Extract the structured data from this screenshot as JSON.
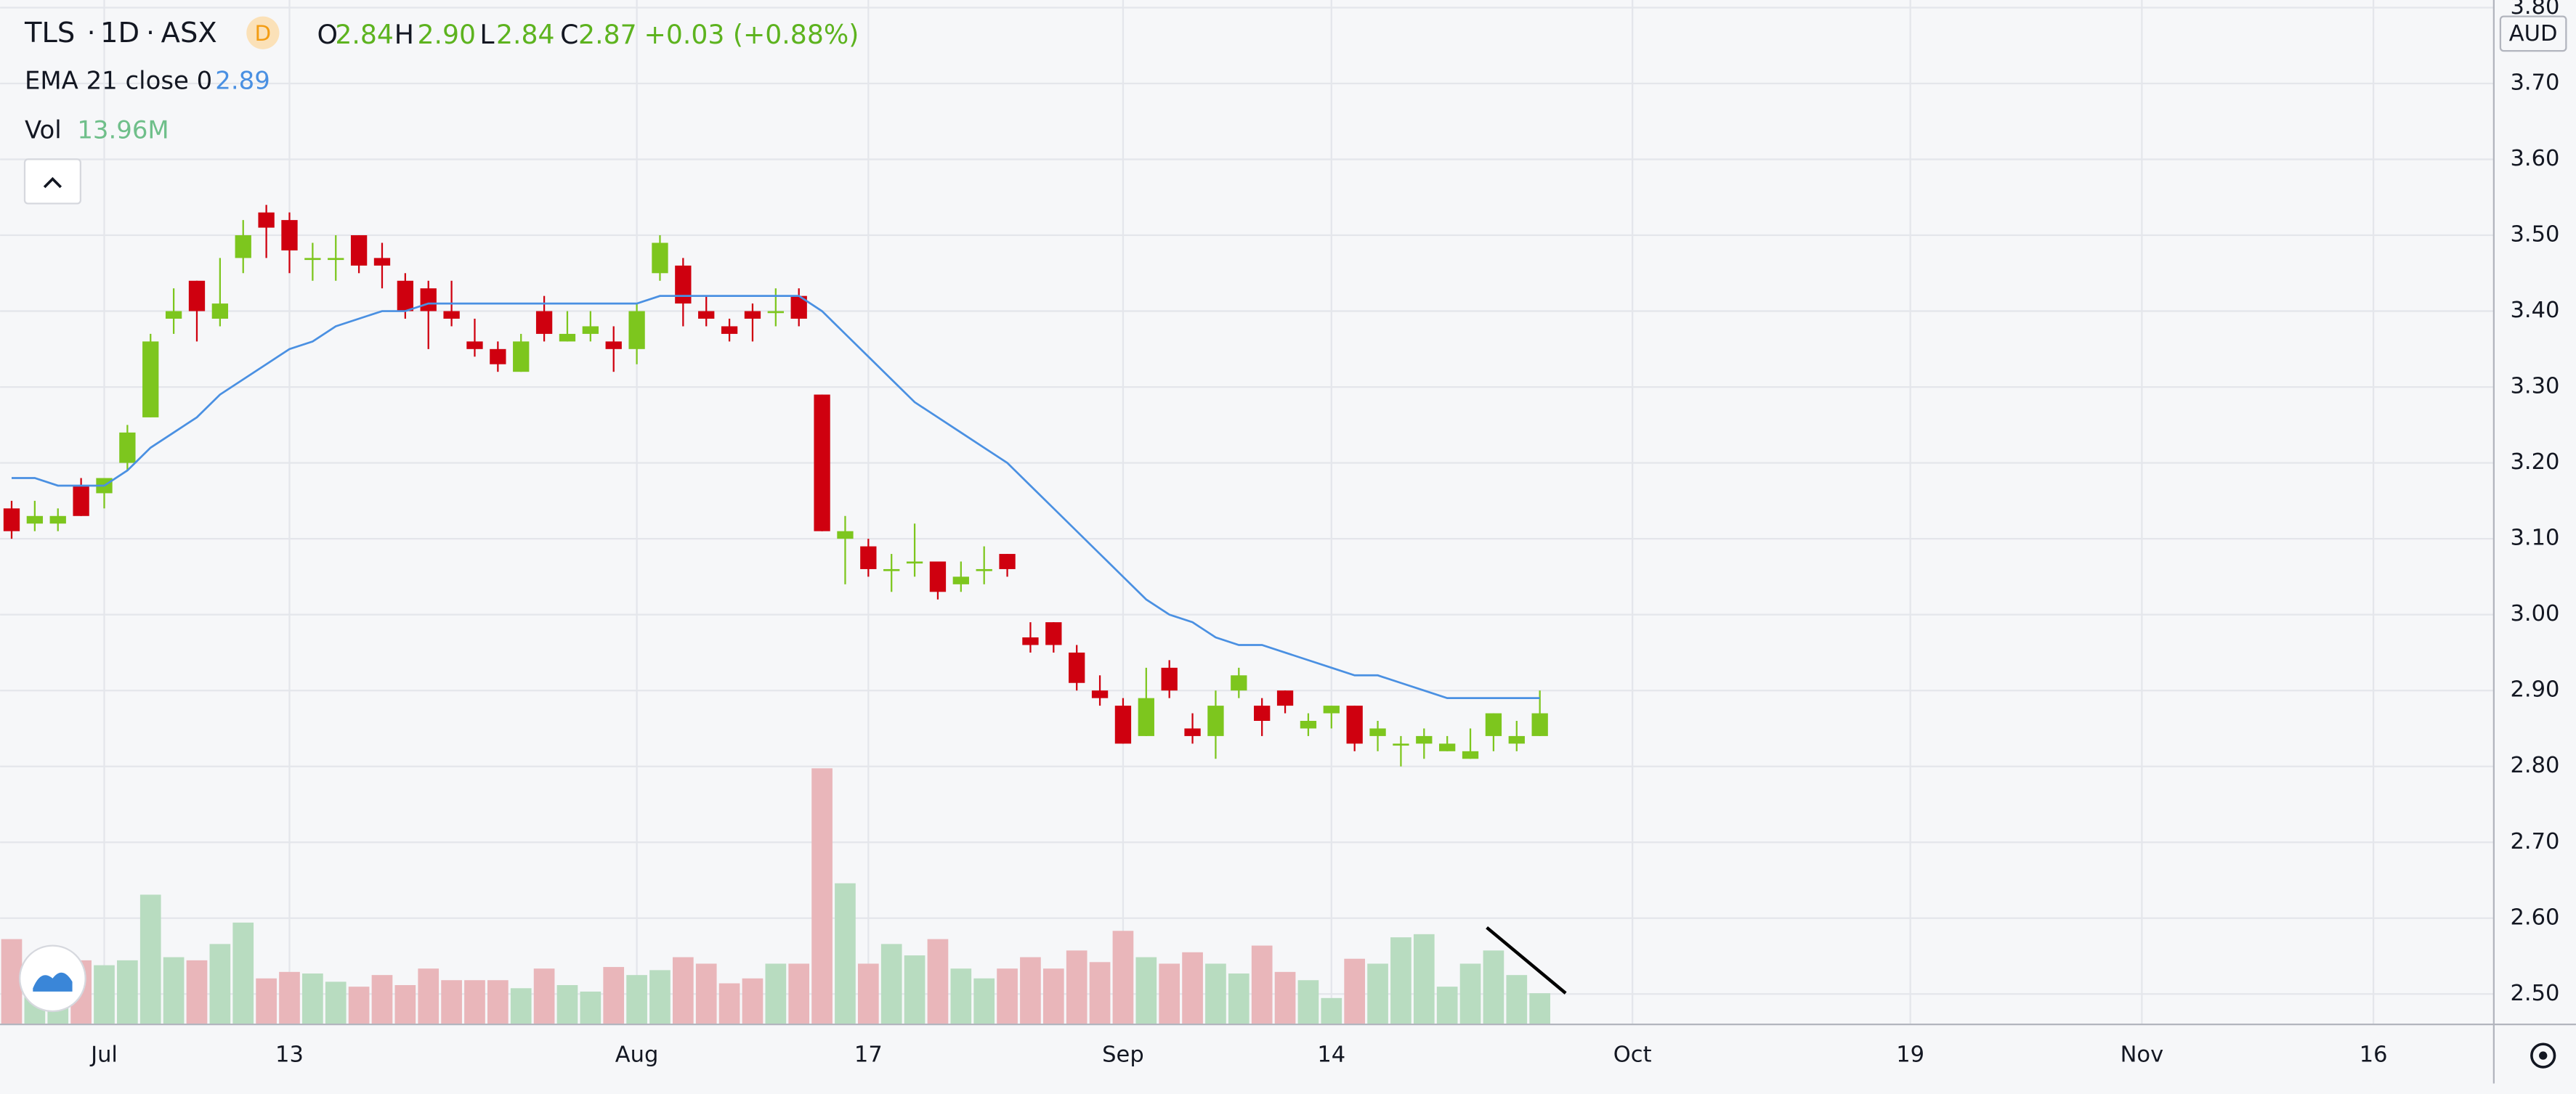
{
  "header": {
    "symbol": "TLS",
    "interval": "1D",
    "exchange": "ASX",
    "badge": "D",
    "o_key": "O",
    "o_val": "2.84",
    "h_key": "H",
    "h_val": "2.90",
    "l_key": "L",
    "l_val": "2.84",
    "c_key": "C",
    "c_val": "2.87",
    "change": "+0.03 (+0.88%)",
    "ema_label": "EMA 21 close 0",
    "ema_val": "2.89",
    "vol_label": "Vol",
    "vol_val": "13.96M",
    "currency": "AUD"
  },
  "chart_data": {
    "type": "candlestick",
    "xlim": [
      -0.5,
      107.2
    ],
    "xticks": [
      {
        "value": 4,
        "label": "Jul"
      },
      {
        "value": 12,
        "label": "13"
      },
      {
        "value": 27,
        "label": "Aug"
      },
      {
        "value": 37,
        "label": "17"
      },
      {
        "value": 48,
        "label": "Sep"
      },
      {
        "value": 57,
        "label": "14"
      },
      {
        "value": 70,
        "label": "Oct"
      },
      {
        "value": 82,
        "label": "19"
      },
      {
        "value": 92,
        "label": "Nov"
      },
      {
        "value": 102,
        "label": "16"
      }
    ],
    "ylim": [
      2.46,
      3.81
    ],
    "yticks": [
      {
        "value": 2.5,
        "label": "2.50"
      },
      {
        "value": 2.6,
        "label": "2.60"
      },
      {
        "value": 2.7,
        "label": "2.70"
      },
      {
        "value": 2.8,
        "label": "2.80"
      },
      {
        "value": 2.9,
        "label": "2.90"
      },
      {
        "value": 3.0,
        "label": "3.00"
      },
      {
        "value": 3.1,
        "label": "3.10"
      },
      {
        "value": 3.2,
        "label": "3.20"
      },
      {
        "value": 3.3,
        "label": "3.30"
      },
      {
        "value": 3.4,
        "label": "3.40"
      },
      {
        "value": 3.5,
        "label": "3.50"
      },
      {
        "value": 3.6,
        "label": "3.60"
      },
      {
        "value": 3.7,
        "label": "3.70"
      },
      {
        "value": 3.8,
        "label": "3.80"
      }
    ],
    "grid": true,
    "up_color": "#7dc61e",
    "down_color": "#cf000f",
    "up_volume_color": "#b8dcc0",
    "down_volume_color": "#e9b6ba",
    "ema_color": "#4a90e2",
    "open": [
      3.14,
      3.12,
      3.12,
      3.17,
      3.16,
      3.2,
      3.26,
      3.39,
      3.44,
      3.39,
      3.47,
      3.53,
      3.52,
      3.47,
      3.47,
      3.5,
      3.47,
      3.44,
      3.43,
      3.4,
      3.36,
      3.35,
      3.32,
      3.4,
      3.36,
      3.37,
      3.36,
      3.35,
      3.45,
      3.46,
      3.4,
      3.38,
      3.4,
      3.4,
      3.42,
      3.29,
      3.1,
      3.09,
      3.06,
      3.07,
      3.07,
      3.04,
      3.06,
      3.08,
      2.97,
      2.99,
      2.95,
      2.9,
      2.88,
      2.84,
      2.93,
      2.85,
      2.84,
      2.9,
      2.88,
      2.9,
      2.85,
      2.87,
      2.88,
      2.84,
      2.83,
      2.83,
      2.82,
      2.81,
      2.84,
      2.83,
      2.84
    ],
    "high": [
      3.15,
      3.15,
      3.14,
      3.18,
      3.18,
      3.25,
      3.37,
      3.43,
      3.44,
      3.47,
      3.52,
      3.54,
      3.53,
      3.49,
      3.5,
      3.5,
      3.49,
      3.45,
      3.44,
      3.44,
      3.39,
      3.36,
      3.37,
      3.42,
      3.4,
      3.4,
      3.38,
      3.41,
      3.5,
      3.47,
      3.42,
      3.39,
      3.41,
      3.43,
      3.43,
      3.29,
      3.13,
      3.1,
      3.08,
      3.12,
      3.07,
      3.07,
      3.09,
      3.08,
      2.99,
      2.99,
      2.96,
      2.92,
      2.89,
      2.93,
      2.94,
      2.87,
      2.9,
      2.93,
      2.89,
      2.9,
      2.87,
      2.88,
      2.88,
      2.86,
      2.84,
      2.85,
      2.84,
      2.85,
      2.87,
      2.86,
      2.9
    ],
    "low": [
      3.1,
      3.11,
      3.11,
      3.13,
      3.14,
      3.19,
      3.26,
      3.37,
      3.36,
      3.38,
      3.45,
      3.47,
      3.45,
      3.44,
      3.44,
      3.45,
      3.43,
      3.39,
      3.35,
      3.38,
      3.34,
      3.32,
      3.32,
      3.36,
      3.36,
      3.36,
      3.32,
      3.33,
      3.44,
      3.38,
      3.38,
      3.36,
      3.36,
      3.38,
      3.38,
      3.11,
      3.04,
      3.05,
      3.03,
      3.05,
      3.02,
      3.03,
      3.04,
      3.05,
      2.95,
      2.95,
      2.9,
      2.88,
      2.83,
      2.84,
      2.89,
      2.83,
      2.81,
      2.89,
      2.84,
      2.87,
      2.84,
      2.85,
      2.82,
      2.82,
      2.8,
      2.81,
      2.82,
      2.81,
      2.82,
      2.82,
      2.84
    ],
    "close": [
      3.11,
      3.13,
      3.13,
      3.13,
      3.18,
      3.24,
      3.36,
      3.4,
      3.4,
      3.41,
      3.5,
      3.51,
      3.48,
      3.47,
      3.47,
      3.46,
      3.46,
      3.4,
      3.4,
      3.39,
      3.35,
      3.33,
      3.36,
      3.37,
      3.37,
      3.38,
      3.35,
      3.4,
      3.49,
      3.41,
      3.39,
      3.37,
      3.39,
      3.4,
      3.39,
      3.11,
      3.11,
      3.06,
      3.06,
      3.07,
      3.03,
      3.05,
      3.06,
      3.06,
      2.96,
      2.96,
      2.91,
      2.89,
      2.83,
      2.89,
      2.9,
      2.84,
      2.88,
      2.92,
      2.86,
      2.88,
      2.86,
      2.88,
      2.83,
      2.85,
      2.83,
      2.84,
      2.83,
      2.82,
      2.87,
      2.84,
      2.87
    ],
    "volume": [
      38.2,
      23.5,
      32.3,
      28.7,
      26.5,
      28.7,
      58.1,
      30.1,
      28.7,
      36.0,
      45.6,
      20.6,
      23.5,
      22.8,
      19.1,
      16.9,
      22.1,
      17.6,
      25.0,
      19.8,
      19.8,
      19.8,
      16.2,
      25.0,
      17.6,
      14.7,
      25.7,
      22.1,
      24.3,
      30.1,
      27.2,
      18.4,
      20.6,
      27.2,
      27.2,
      114.7,
      63.2,
      27.2,
      36.0,
      30.9,
      38.2,
      25.0,
      20.6,
      25.0,
      30.1,
      25.0,
      33.1,
      27.9,
      41.9,
      30.1,
      27.2,
      32.3,
      27.2,
      22.8,
      35.3,
      23.5,
      19.8,
      11.8,
      29.4,
      27.2,
      39.0,
      40.4,
      16.9,
      27.2,
      33.1,
      22.1,
      13.96
    ],
    "ema": [
      3.18,
      3.18,
      3.17,
      3.17,
      3.17,
      3.19,
      3.22,
      3.24,
      3.26,
      3.29,
      3.31,
      3.33,
      3.35,
      3.36,
      3.38,
      3.39,
      3.4,
      3.4,
      3.41,
      3.41,
      3.41,
      3.41,
      3.41,
      3.41,
      3.41,
      3.41,
      3.41,
      3.41,
      3.42,
      3.42,
      3.42,
      3.42,
      3.42,
      3.42,
      3.42,
      3.4,
      3.37,
      3.34,
      3.31,
      3.28,
      3.26,
      3.24,
      3.22,
      3.2,
      3.17,
      3.14,
      3.11,
      3.08,
      3.05,
      3.02,
      3.0,
      2.99,
      2.97,
      2.96,
      2.96,
      2.95,
      2.94,
      2.93,
      2.92,
      2.92,
      2.91,
      2.9,
      2.89,
      2.89,
      2.89,
      2.89,
      2.89
    ]
  }
}
